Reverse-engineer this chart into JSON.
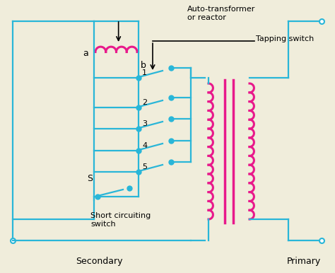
{
  "bg_color": "#f0eddb",
  "line_color": "#29b6d8",
  "coil_color": "#e8198b",
  "text_color": "#000000",
  "dot_color": "#29b6d8",
  "title_line1": "Auto-transformer",
  "title_line2": "or reactor",
  "tapping_label": "Tapping switch",
  "short_label": "Short circuiting\nswitch",
  "secondary_label": "Secondary",
  "primary_label": "Primary",
  "a_label": "a",
  "b_label": "b",
  "s_label": "S",
  "tap_numbers": [
    "1",
    "2",
    "3",
    "4",
    "5"
  ]
}
